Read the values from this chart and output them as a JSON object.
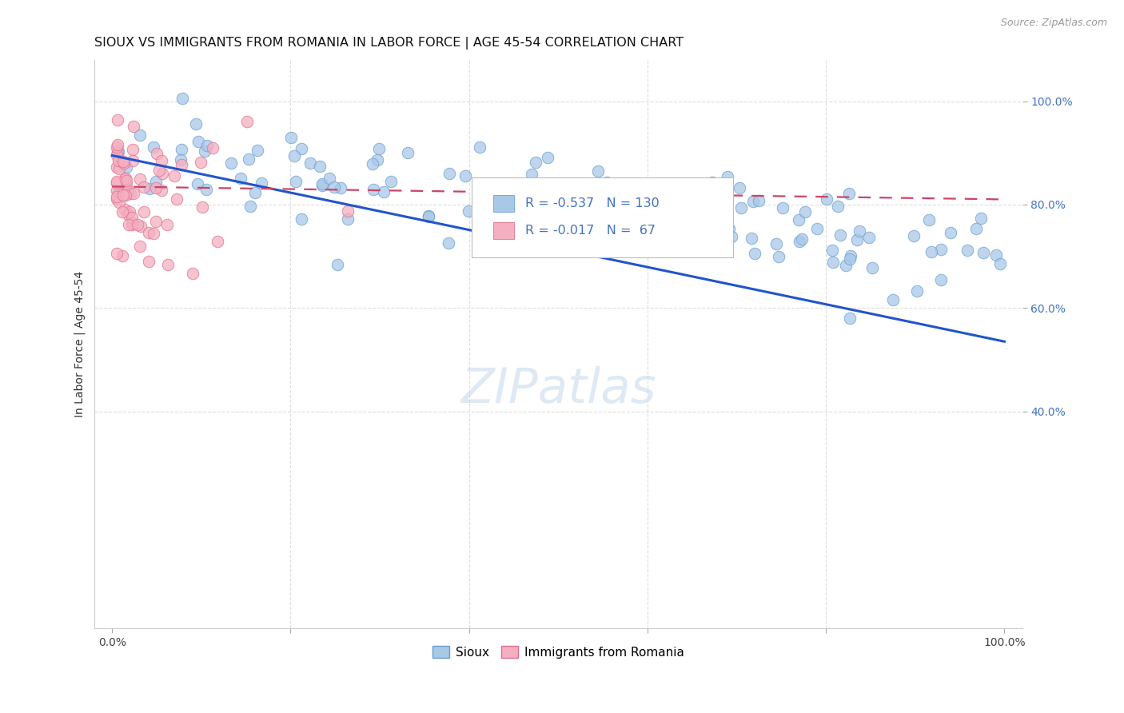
{
  "title": "SIOUX VS IMMIGRANTS FROM ROMANIA IN LABOR FORCE | AGE 45-54 CORRELATION CHART",
  "source_text": "Source: ZipAtlas.com",
  "ylabel": "In Labor Force | Age 45-54",
  "xlim": [
    -0.02,
    1.02
  ],
  "ylim": [
    -0.02,
    1.08
  ],
  "watermark": "ZIPatlas",
  "legend_r_blue": "-0.537",
  "legend_n_blue": "130",
  "legend_r_pink": "-0.017",
  "legend_n_pink": " 67",
  "blue_color": "#a8c8e8",
  "blue_edge": "#6a9fcf",
  "pink_color": "#f4afc0",
  "pink_edge": "#e07090",
  "trendline_blue": "#2255cc",
  "trendline_pink": "#cc4466",
  "background_color": "#ffffff",
  "grid_color": "#dddddd",
  "right_tick_color": "#4472c4",
  "blue_trend_x0": 0.0,
  "blue_trend_y0": 0.895,
  "blue_trend_x1": 1.0,
  "blue_trend_y1": 0.535,
  "pink_trend_x0": 0.0,
  "pink_trend_y0": 0.835,
  "pink_trend_x1": 1.0,
  "pink_trend_y1": 0.81,
  "seed_blue": 99,
  "seed_pink": 77,
  "N_blue": 130,
  "N_pink": 67
}
